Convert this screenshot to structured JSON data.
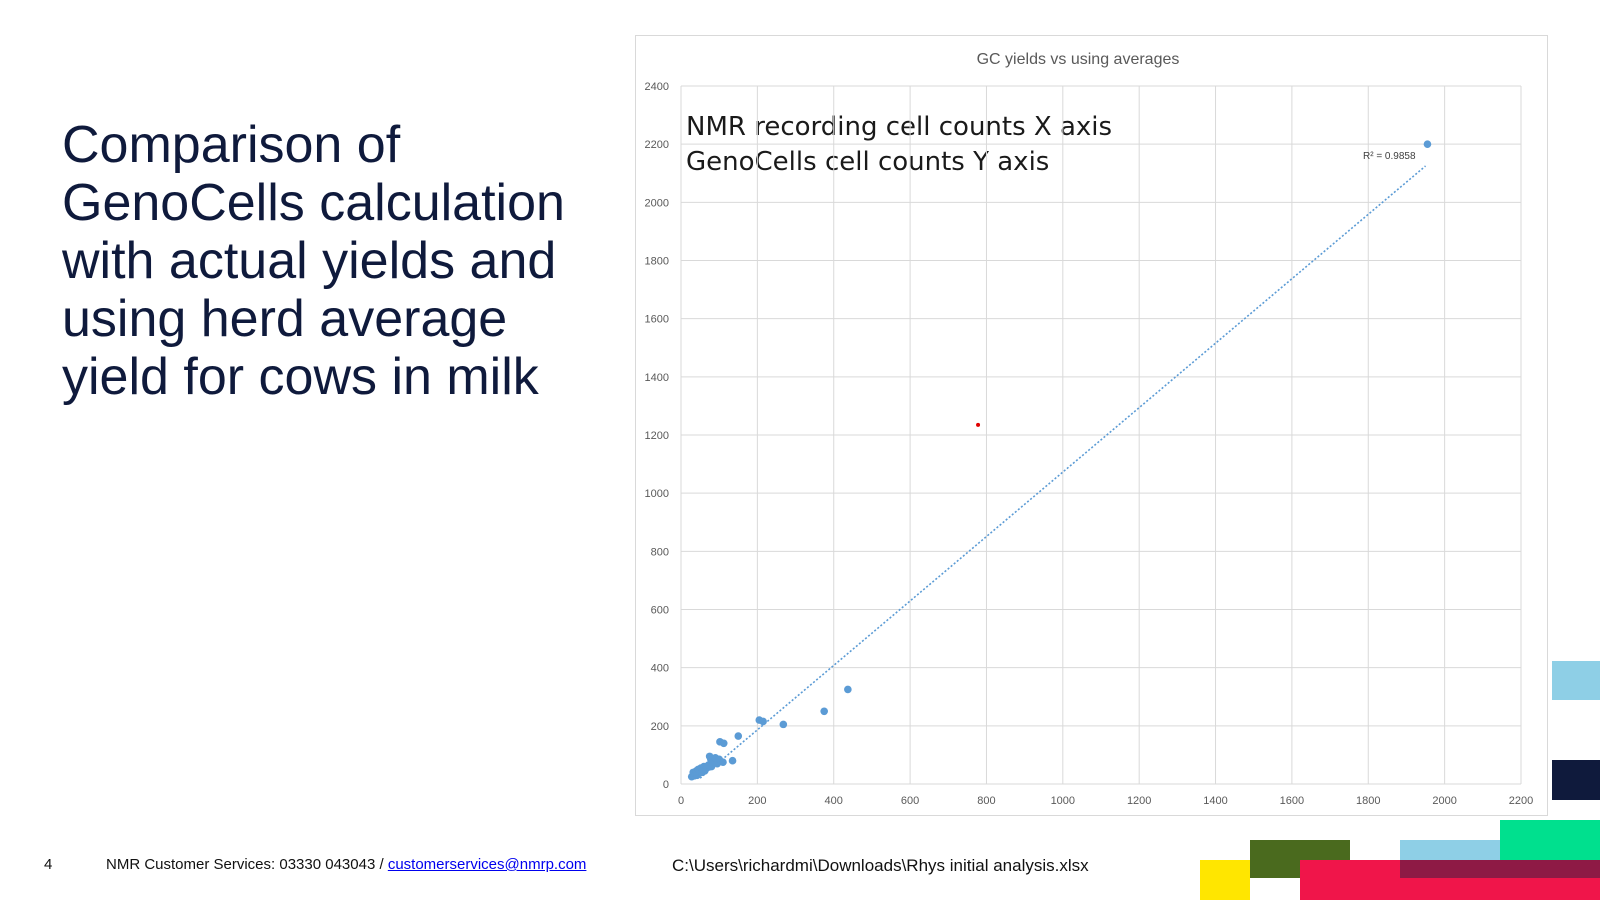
{
  "slide": {
    "title": "Comparison of\nGenoCells calculation\nwith actual yields and\nusing herd average\nyield for cows in milk"
  },
  "footer": {
    "page_number": "4",
    "contact_text": "NMR Customer Services: 03330 043043 / ",
    "email": "customerservices@nmrp.com",
    "file_path": "C:\\Users\\richardmi\\Downloads\\Rhys initial analysis.xlsx"
  },
  "colors": {
    "title": "#0f1a3c",
    "series": "#5b9bd5",
    "outlier": "#e00000",
    "deco_yellow": "#ffe600",
    "deco_olive": "#4a6a1e",
    "deco_red": "#f0154a",
    "deco_light_blue": "#8ecfe6",
    "deco_green": "#00e08e",
    "deco_maroon": "#8e1a45",
    "deco_navy": "#0f1a3c"
  },
  "chart_data": {
    "type": "scatter",
    "title": "GC yields vs using averages",
    "annotations": [
      "NMR recording cell counts X axis",
      "GenoCells cell counts Y axis"
    ],
    "trendline": {
      "style": "dotted linear",
      "label": "R² = 0.9858",
      "from": [
        50,
        20
      ],
      "to": [
        1950,
        2125
      ]
    },
    "xlim": [
      0,
      2200
    ],
    "ylim": [
      0,
      2400
    ],
    "xticks": [
      0,
      200,
      400,
      600,
      800,
      1000,
      1200,
      1400,
      1600,
      1800,
      2000,
      2200
    ],
    "yticks": [
      0,
      200,
      400,
      600,
      800,
      1000,
      1200,
      1400,
      1600,
      1800,
      2000,
      2200,
      2400
    ],
    "grid": true,
    "series": [
      {
        "points": [
          [
            28,
            25
          ],
          [
            32,
            40
          ],
          [
            35,
            28
          ],
          [
            38,
            35
          ],
          [
            40,
            45
          ],
          [
            42,
            30
          ],
          [
            45,
            50
          ],
          [
            48,
            38
          ],
          [
            50,
            42
          ],
          [
            52,
            55
          ],
          [
            55,
            40
          ],
          [
            58,
            48
          ],
          [
            60,
            60
          ],
          [
            62,
            45
          ],
          [
            65,
            52
          ],
          [
            68,
            58
          ],
          [
            72,
            65
          ],
          [
            75,
            95
          ],
          [
            78,
            85
          ],
          [
            80,
            60
          ],
          [
            85,
            75
          ],
          [
            90,
            90
          ],
          [
            95,
            70
          ],
          [
            100,
            85
          ],
          [
            102,
            145
          ],
          [
            110,
            75
          ],
          [
            112,
            140
          ],
          [
            135,
            80
          ],
          [
            150,
            165
          ],
          [
            205,
            220
          ],
          [
            215,
            215
          ],
          [
            268,
            205
          ],
          [
            375,
            250
          ],
          [
            437,
            325
          ],
          [
            1955,
            2200
          ]
        ]
      },
      {
        "points": [
          [
            778,
            1235
          ]
        ]
      }
    ]
  }
}
